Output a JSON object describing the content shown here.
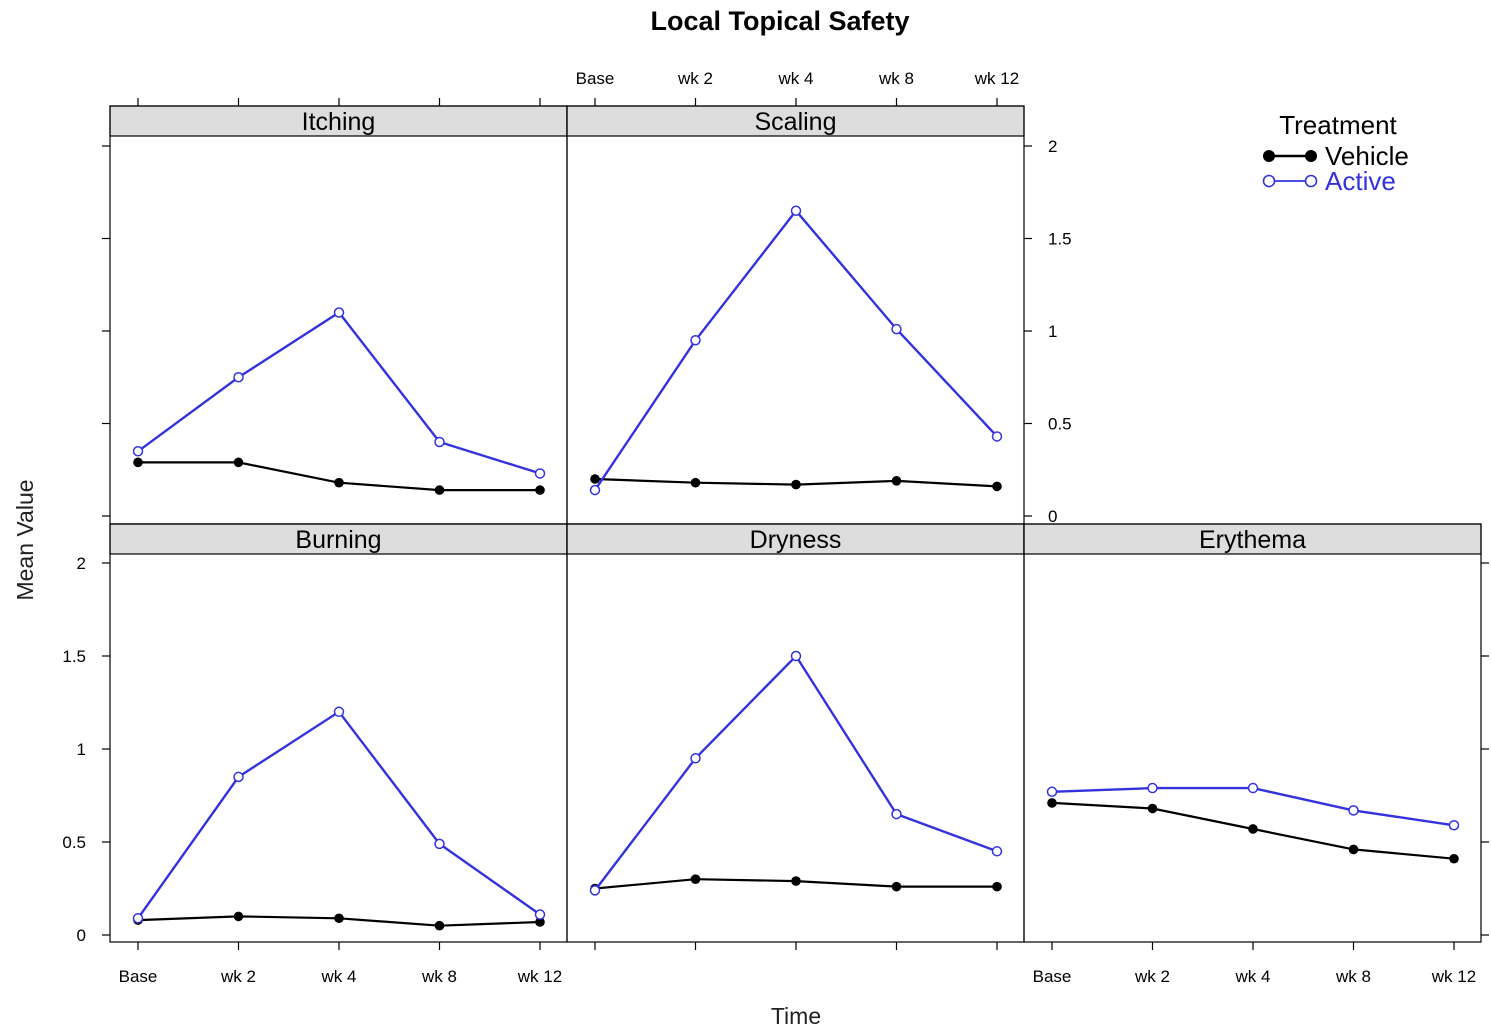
{
  "chart_data": {
    "type": "line",
    "title": "Local Topical Safety",
    "xlabel": "Time",
    "ylabel": "Mean Value",
    "categories": [
      "Base",
      "wk 2",
      "wk 4",
      "wk 8",
      "wk 12"
    ],
    "y_ticks": [
      0,
      0.5,
      1,
      1.5,
      2
    ],
    "y_tick_labels": [
      "0",
      "0.5",
      "1",
      "1.5",
      "2"
    ],
    "ylim": [
      0,
      2
    ],
    "legend": {
      "title": "Treatment",
      "position": "top-right",
      "entries": [
        {
          "name": "Vehicle",
          "color": "#000000",
          "marker": "filled-circle"
        },
        {
          "name": "Active",
          "color": "#3333dd",
          "marker": "open-circle"
        }
      ]
    },
    "panels": [
      {
        "name": "Itching",
        "series": [
          {
            "name": "Vehicle",
            "values": [
              0.29,
              0.29,
              0.18,
              0.14,
              0.14
            ]
          },
          {
            "name": "Active",
            "values": [
              0.35,
              0.75,
              1.1,
              0.4,
              0.23
            ]
          }
        ]
      },
      {
        "name": "Scaling",
        "series": [
          {
            "name": "Vehicle",
            "values": [
              0.2,
              0.18,
              0.17,
              0.19,
              0.16
            ]
          },
          {
            "name": "Active",
            "values": [
              0.14,
              0.95,
              1.65,
              1.01,
              0.43
            ]
          }
        ]
      },
      {
        "name": "Burning",
        "series": [
          {
            "name": "Vehicle",
            "values": [
              0.08,
              0.1,
              0.09,
              0.05,
              0.07
            ]
          },
          {
            "name": "Active",
            "values": [
              0.09,
              0.85,
              1.2,
              0.49,
              0.11
            ]
          }
        ]
      },
      {
        "name": "Dryness",
        "series": [
          {
            "name": "Vehicle",
            "values": [
              0.25,
              0.3,
              0.29,
              0.26,
              0.26
            ]
          },
          {
            "name": "Active",
            "values": [
              0.24,
              0.95,
              1.5,
              0.65,
              0.45
            ]
          }
        ]
      },
      {
        "name": "Erythema",
        "series": [
          {
            "name": "Vehicle",
            "values": [
              0.71,
              0.68,
              0.57,
              0.46,
              0.41
            ]
          },
          {
            "name": "Active",
            "values": [
              0.77,
              0.79,
              0.79,
              0.67,
              0.59
            ]
          }
        ]
      }
    ]
  }
}
